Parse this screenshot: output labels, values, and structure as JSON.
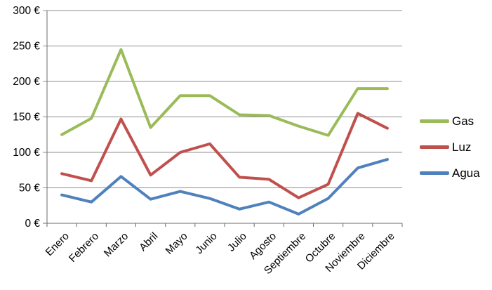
{
  "chart_data": {
    "type": "line",
    "title": "",
    "xlabel": "",
    "ylabel": "",
    "categories": [
      "Enero",
      "Febrero",
      "Marzo",
      "Abril",
      "Mayo",
      "Junio",
      "Julio",
      "Agosto",
      "Septiembre",
      "Octubre",
      "Noviembre",
      "Diciembre"
    ],
    "series": [
      {
        "name": "Gas",
        "color": "#9BBB59",
        "values": [
          125,
          148,
          245,
          135,
          180,
          180,
          153,
          152,
          137,
          124,
          190,
          190
        ]
      },
      {
        "name": "Luz",
        "color": "#C0504D",
        "values": [
          70,
          60,
          147,
          68,
          100,
          112,
          65,
          62,
          36,
          55,
          155,
          134
        ]
      },
      {
        "name": "Agua",
        "color": "#4F81BD",
        "values": [
          40,
          30,
          66,
          34,
          45,
          35,
          20,
          30,
          13,
          35,
          78,
          90
        ]
      }
    ],
    "y_axis": {
      "min": 0,
      "max": 300,
      "step": 50,
      "tick_labels": [
        "0 €",
        "50 €",
        "100 €",
        "150 €",
        "200 €",
        "250 €",
        "300 €"
      ]
    },
    "legend_position": "right",
    "grid": true,
    "colors": {
      "gridline": "#8E8E8E",
      "axis": "#6B6B6B",
      "text": "#000000",
      "background": "#FFFFFF"
    }
  }
}
